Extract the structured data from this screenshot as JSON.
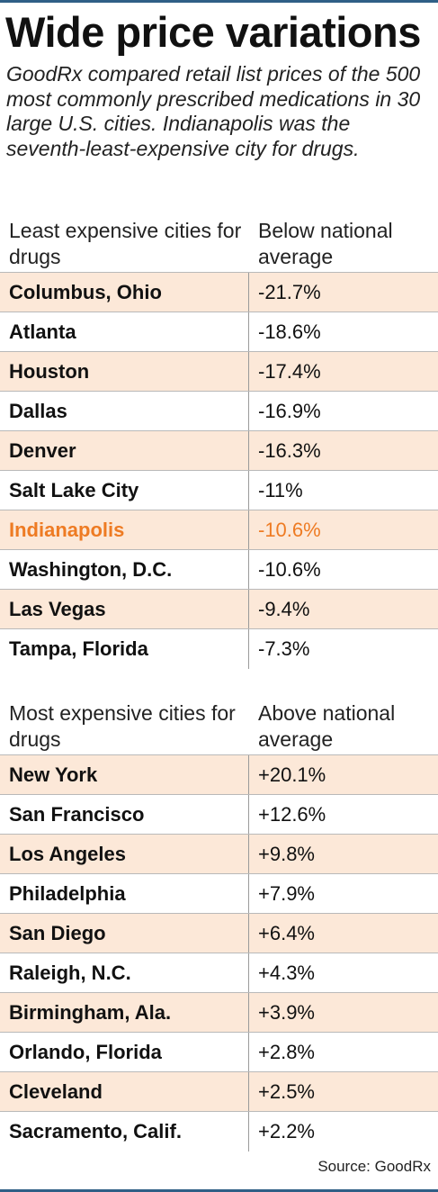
{
  "title": "Wide price variations",
  "subtitle": "GoodRx compared retail list prices of the 500 most commonly prescribed medications in 30 large U.S. cities. Indianapolis was the seventh-least-expensive city for drugs.",
  "source": "Source: GoodRx",
  "colors": {
    "rule": "#2f5f86",
    "shade": "#fce8d8",
    "highlight": "#ee7b23"
  },
  "chart_data": [
    {
      "type": "table",
      "columns": [
        "Least expensive cities for drugs",
        "Below national average"
      ],
      "rows": [
        [
          "Columbus, Ohio",
          "-21.7%"
        ],
        [
          "Atlanta",
          "-18.6%"
        ],
        [
          "Houston",
          "-17.4%"
        ],
        [
          "Dallas",
          "-16.9%"
        ],
        [
          "Denver",
          "-16.3%"
        ],
        [
          "Salt Lake City",
          "-11%"
        ],
        [
          "Indianapolis",
          "-10.6%"
        ],
        [
          "Washington, D.C.",
          "-10.6%"
        ],
        [
          "Las Vegas",
          "-9.4%"
        ],
        [
          "Tampa, Florida",
          "-7.3%"
        ]
      ],
      "highlight_row": 6
    },
    {
      "type": "table",
      "columns": [
        "Most expensive cities for drugs",
        "Above national average"
      ],
      "rows": [
        [
          "New York",
          "+20.1%"
        ],
        [
          "San Francisco",
          "+12.6%"
        ],
        [
          "Los Angeles",
          "+9.8%"
        ],
        [
          "Philadelphia",
          "+7.9%"
        ],
        [
          "San Diego",
          "+6.4%"
        ],
        [
          "Raleigh, N.C.",
          "+4.3%"
        ],
        [
          "Birmingham, Ala.",
          "+3.9%"
        ],
        [
          "Orlando, Florida",
          "+2.8%"
        ],
        [
          "Cleveland",
          "+2.5%"
        ],
        [
          "Sacramento, Calif.",
          "+2.2%"
        ]
      ]
    }
  ]
}
